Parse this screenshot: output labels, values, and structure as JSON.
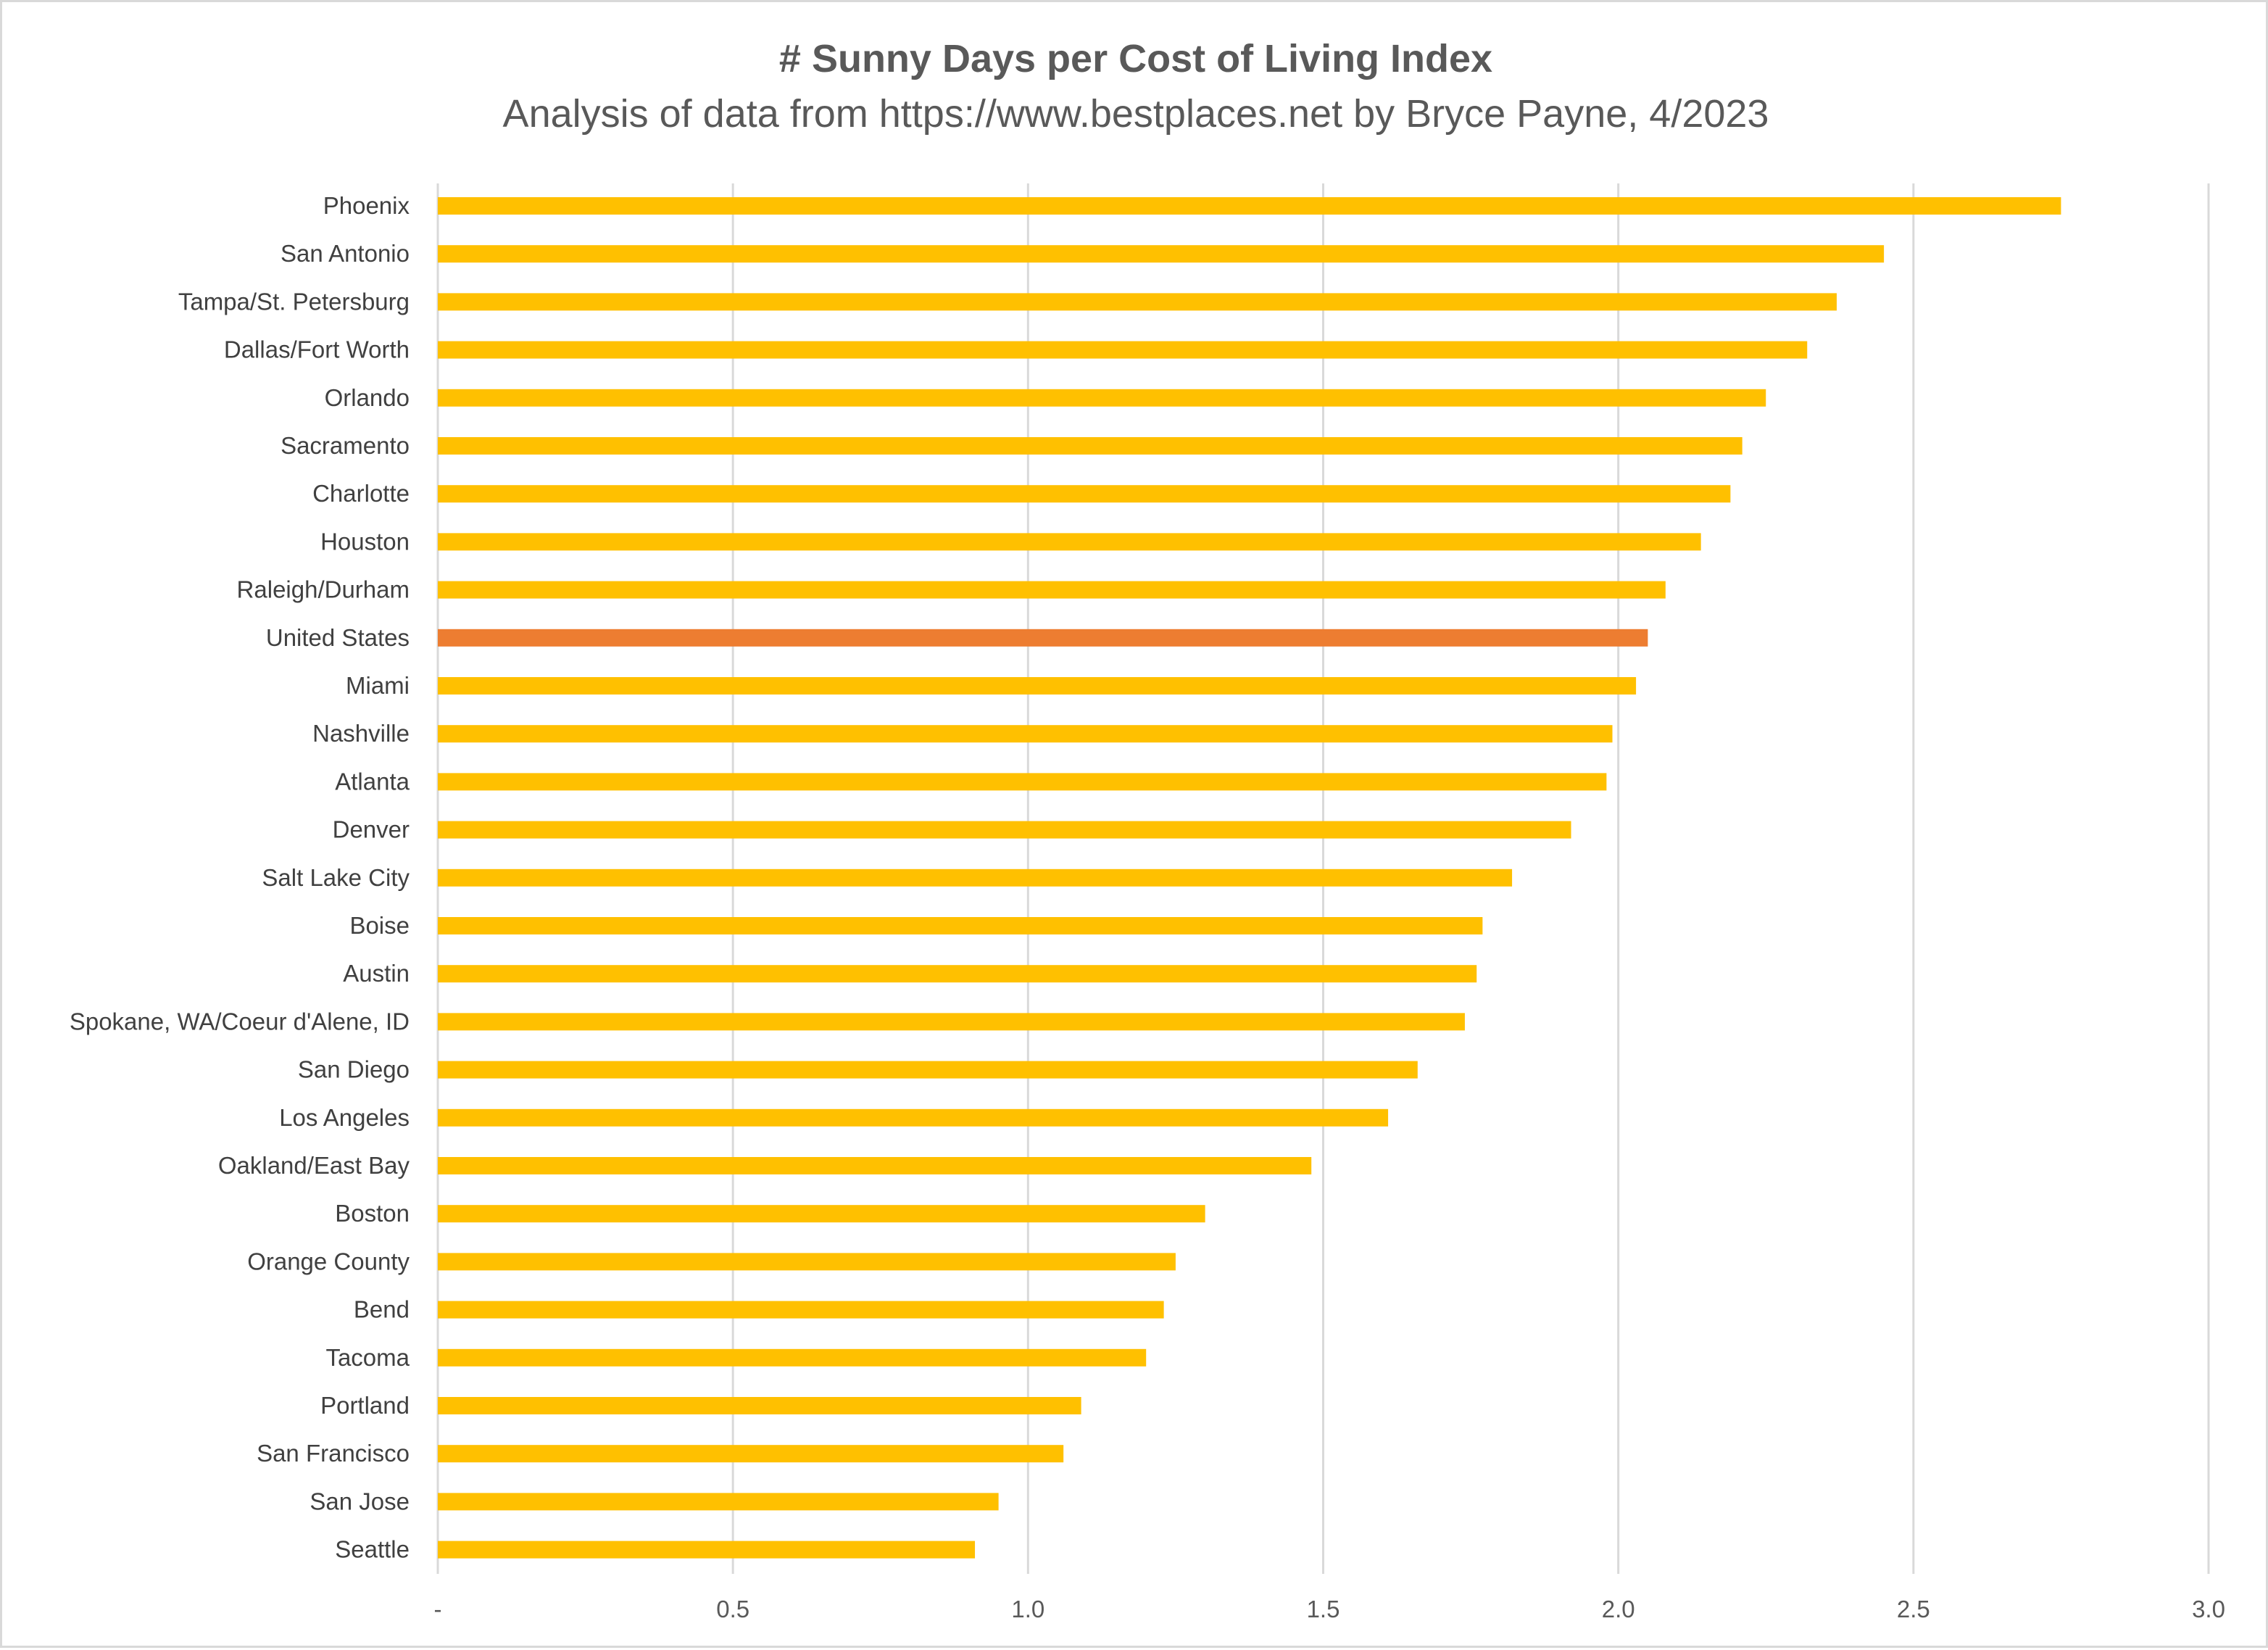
{
  "chart_data": {
    "type": "bar",
    "orientation": "horizontal",
    "title": "# Sunny Days per Cost of Living Index",
    "subtitle": "Analysis of data from https://www.bestplaces.net by Bryce Payne, 4/2023",
    "categories": [
      "Phoenix",
      "San Antonio",
      "Tampa/St. Petersburg",
      "Dallas/Fort Worth",
      "Orlando",
      "Sacramento",
      "Charlotte",
      "Houston",
      "Raleigh/Durham",
      "United States",
      "Miami",
      "Nashville",
      "Atlanta",
      "Denver",
      "Salt Lake City",
      "Boise",
      "Austin",
      "Spokane, WA/Coeur d'Alene, ID",
      "San Diego",
      "Los Angeles",
      "Oakland/East Bay",
      "Boston",
      "Orange County",
      "Bend",
      "Tacoma",
      "Portland",
      "San Francisco",
      "San Jose",
      "Seattle"
    ],
    "values": [
      2.75,
      2.45,
      2.37,
      2.32,
      2.25,
      2.21,
      2.19,
      2.14,
      2.08,
      2.05,
      2.03,
      1.99,
      1.98,
      1.92,
      1.82,
      1.77,
      1.76,
      1.74,
      1.66,
      1.61,
      1.48,
      1.3,
      1.25,
      1.23,
      1.2,
      1.09,
      1.06,
      0.95,
      0.91
    ],
    "highlight_category": "United States",
    "colors": {
      "bar": "#FFC000",
      "highlight": "#ED7D31",
      "grid": "#D9D9D9"
    },
    "xlim": [
      0,
      3.0
    ],
    "x_ticks": [
      0,
      0.5,
      1.0,
      1.5,
      2.0,
      2.5,
      3.0
    ],
    "x_tick_labels": [
      "-",
      "0.5",
      "1.0",
      "1.5",
      "2.0",
      "2.5",
      "3.0"
    ],
    "xlabel": "",
    "ylabel": "",
    "grid": "vertical",
    "legend": "none"
  }
}
